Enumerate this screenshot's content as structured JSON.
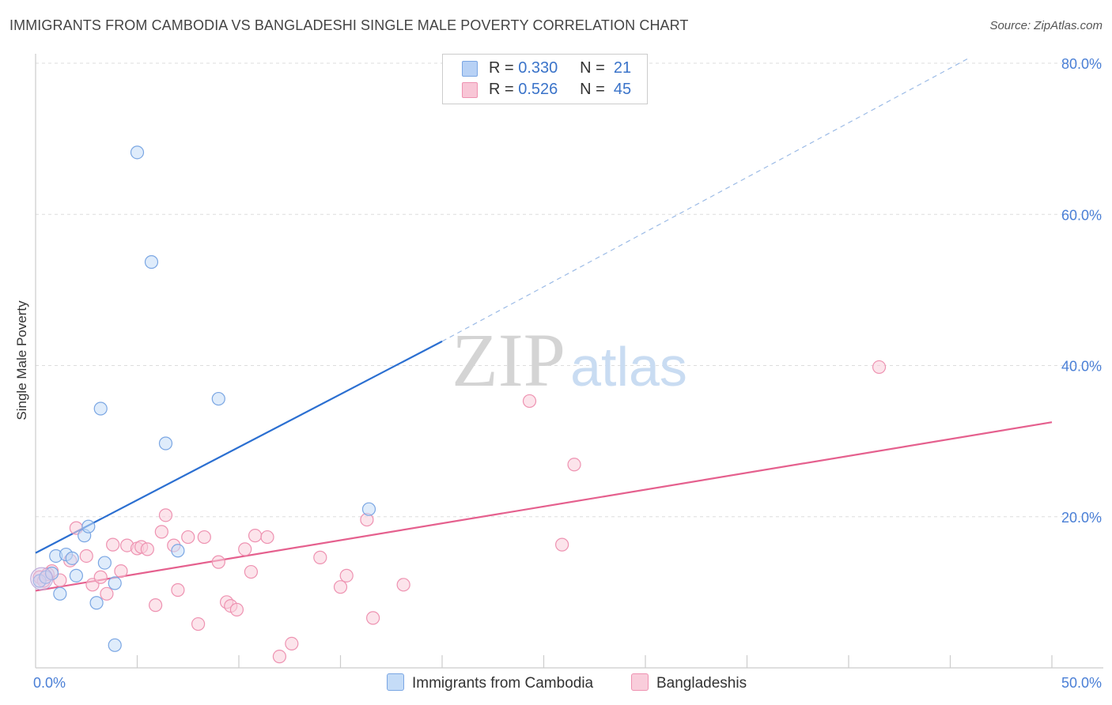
{
  "title": "IMMIGRANTS FROM CAMBODIA VS BANGLADESHI SINGLE MALE POVERTY CORRELATION CHART",
  "source": "Source: ZipAtlas.com",
  "watermark": {
    "zip": "ZIP",
    "atlas": "atlas"
  },
  "legend_top": [
    {
      "r_label": "R =",
      "r_value": "0.330",
      "n_label": "N =",
      "n_value": "21",
      "fill": "#b7d1f5",
      "stroke": "#7aa6e3"
    },
    {
      "r_label": "R =",
      "r_value": "0.526",
      "n_label": "N =",
      "n_value": "45",
      "fill": "#f8c6d6",
      "stroke": "#ee92b1"
    }
  ],
  "legend_bottom": [
    {
      "label": "Immigrants from Cambodia",
      "fill": "#c5dcf7",
      "stroke": "#7aa6e3"
    },
    {
      "label": "Bangladeshis",
      "fill": "#f9cddb",
      "stroke": "#ee92b1"
    }
  ],
  "chart_data": {
    "type": "scatter",
    "title": "IMMIGRANTS FROM CAMBODIA VS BANGLADESHI SINGLE MALE POVERTY CORRELATION CHART",
    "xlabel": "",
    "ylabel": "Single Male Poverty",
    "xlim": [
      0,
      50
    ],
    "ylim": [
      0,
      80
    ],
    "x_tick_labels": [
      {
        "value": 0,
        "label": "0.0%"
      },
      {
        "value": 50,
        "label": "50.0%"
      }
    ],
    "y_tick_labels": [
      {
        "value": 20,
        "label": "20.0%"
      },
      {
        "value": 40,
        "label": "40.0%"
      },
      {
        "value": 60,
        "label": "60.0%"
      },
      {
        "value": 80,
        "label": "80.0%"
      }
    ],
    "x_minor_ticks": [
      5,
      10,
      15,
      20,
      25,
      30,
      35,
      40,
      45,
      50
    ],
    "series": [
      {
        "name": "Immigrants from Cambodia",
        "color": "#7aa6e3",
        "fill": "#c5dcf7",
        "points": [
          [
            0.2,
            11.5
          ],
          [
            0.5,
            12.0
          ],
          [
            0.8,
            12.5
          ],
          [
            1.0,
            14.8
          ],
          [
            1.2,
            9.8
          ],
          [
            1.5,
            15.0
          ],
          [
            1.8,
            14.5
          ],
          [
            2.0,
            12.2
          ],
          [
            2.4,
            17.5
          ],
          [
            2.6,
            18.7
          ],
          [
            3.0,
            8.6
          ],
          [
            3.2,
            34.3
          ],
          [
            3.4,
            13.9
          ],
          [
            3.9,
            11.2
          ],
          [
            3.9,
            3.0
          ],
          [
            5.0,
            68.2
          ],
          [
            5.7,
            53.7
          ],
          [
            6.4,
            29.7
          ],
          [
            7.0,
            15.5
          ],
          [
            9.0,
            35.6
          ],
          [
            16.4,
            21.0
          ]
        ],
        "trend": {
          "x": [
            0,
            20
          ],
          "y": [
            15.2,
            43.2
          ],
          "dashed_to": [
            46,
            80.8
          ],
          "color": "#2b6fd1"
        }
      },
      {
        "name": "Bangladeshis",
        "color": "#ee92b1",
        "fill": "#f9cddb",
        "points": [
          [
            0.2,
            12.0
          ],
          [
            0.4,
            11.5
          ],
          [
            0.8,
            12.8
          ],
          [
            1.2,
            11.6
          ],
          [
            1.7,
            14.2
          ],
          [
            2.0,
            18.5
          ],
          [
            2.5,
            14.8
          ],
          [
            2.8,
            11.0
          ],
          [
            3.2,
            12.0
          ],
          [
            3.5,
            9.8
          ],
          [
            3.8,
            16.3
          ],
          [
            4.2,
            12.8
          ],
          [
            4.5,
            16.2
          ],
          [
            5.0,
            15.8
          ],
          [
            5.2,
            16.0
          ],
          [
            5.5,
            15.7
          ],
          [
            5.9,
            8.3
          ],
          [
            6.2,
            18.0
          ],
          [
            6.4,
            20.2
          ],
          [
            6.8,
            16.2
          ],
          [
            7.0,
            10.3
          ],
          [
            7.5,
            17.3
          ],
          [
            8.0,
            5.8
          ],
          [
            8.3,
            17.3
          ],
          [
            9.0,
            14.0
          ],
          [
            9.4,
            8.7
          ],
          [
            9.6,
            8.2
          ],
          [
            9.9,
            7.7
          ],
          [
            10.3,
            15.7
          ],
          [
            10.6,
            12.7
          ],
          [
            10.8,
            17.5
          ],
          [
            11.4,
            17.3
          ],
          [
            12.0,
            1.5
          ],
          [
            12.6,
            3.2
          ],
          [
            14.0,
            14.6
          ],
          [
            15.0,
            10.7
          ],
          [
            15.3,
            12.2
          ],
          [
            16.3,
            19.6
          ],
          [
            16.6,
            6.6
          ],
          [
            18.1,
            11.0
          ],
          [
            24.3,
            35.3
          ],
          [
            25.9,
            16.3
          ],
          [
            26.5,
            26.9
          ],
          [
            41.5,
            39.8
          ],
          [
            0.6,
            12.4
          ]
        ],
        "trend": {
          "x": [
            0,
            50
          ],
          "y": [
            10.2,
            32.5
          ],
          "color": "#e5608e"
        }
      }
    ]
  }
}
